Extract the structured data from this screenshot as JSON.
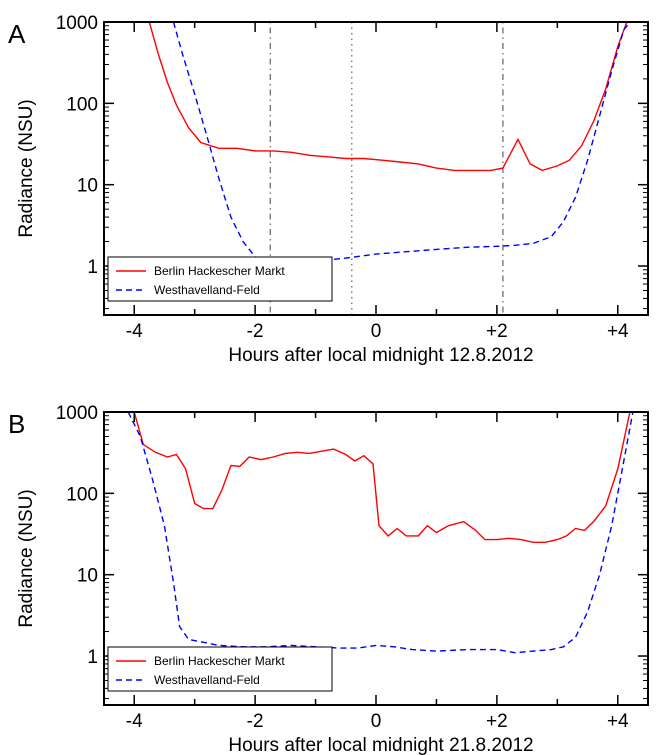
{
  "chart_data": [
    {
      "type": "line",
      "panel": "A",
      "xlabel": "Hours after local midnight 12.8.2012",
      "ylabel": "Radiance (NSU)",
      "xlim": [
        -4.5,
        4.5
      ],
      "ylim": [
        0.25,
        1000
      ],
      "yscale": "log",
      "x_ticks": [
        -4,
        -2,
        0,
        2,
        4
      ],
      "x_tick_labels": [
        "-4",
        "-2",
        "0",
        "+2",
        "+4"
      ],
      "y_ticks": [
        1,
        10,
        100,
        1000
      ],
      "y_tick_labels": [
        "1",
        "10",
        "100",
        "1000"
      ],
      "legend_position": "lower-left",
      "vlines": [
        {
          "x": -1.75,
          "style": "dashdot"
        },
        {
          "x": -0.4,
          "style": "dotted"
        },
        {
          "x": 2.1,
          "style": "dashdot"
        }
      ],
      "series": [
        {
          "name": "Berlin Hackescher Markt",
          "color": "#ff0000",
          "dash": "solid",
          "points": [
            [
              -3.75,
              1000
            ],
            [
              -3.6,
              400
            ],
            [
              -3.45,
              180
            ],
            [
              -3.3,
              95
            ],
            [
              -3.1,
              50
            ],
            [
              -2.9,
              33
            ],
            [
              -2.6,
              28
            ],
            [
              -2.3,
              28
            ],
            [
              -2.0,
              26
            ],
            [
              -1.7,
              26
            ],
            [
              -1.4,
              25
            ],
            [
              -1.1,
              23
            ],
            [
              -0.8,
              22
            ],
            [
              -0.5,
              21
            ],
            [
              -0.2,
              21
            ],
            [
              0.1,
              20
            ],
            [
              0.4,
              19
            ],
            [
              0.7,
              18
            ],
            [
              1.0,
              16
            ],
            [
              1.3,
              15
            ],
            [
              1.6,
              15
            ],
            [
              1.9,
              15
            ],
            [
              2.1,
              16
            ],
            [
              2.35,
              36
            ],
            [
              2.55,
              18
            ],
            [
              2.75,
              15
            ],
            [
              3.0,
              17
            ],
            [
              3.2,
              20
            ],
            [
              3.4,
              30
            ],
            [
              3.6,
              60
            ],
            [
              3.8,
              150
            ],
            [
              4.0,
              500
            ],
            [
              4.15,
              1000
            ]
          ]
        },
        {
          "name": "Westhavelland-Feld",
          "color": "#0000ff",
          "dash": "dashed",
          "points": [
            [
              -3.35,
              1000
            ],
            [
              -3.2,
              400
            ],
            [
              -3.0,
              130
            ],
            [
              -2.8,
              40
            ],
            [
              -2.6,
              12
            ],
            [
              -2.4,
              4
            ],
            [
              -2.2,
              2
            ],
            [
              -2.0,
              1.3
            ],
            [
              -1.8,
              1.15
            ],
            [
              -1.5,
              1.1
            ],
            [
              -1.0,
              1.15
            ],
            [
              -0.5,
              1.25
            ],
            [
              0.0,
              1.4
            ],
            [
              0.5,
              1.5
            ],
            [
              1.0,
              1.6
            ],
            [
              1.5,
              1.7
            ],
            [
              2.0,
              1.75
            ],
            [
              2.3,
              1.8
            ],
            [
              2.6,
              1.9
            ],
            [
              2.9,
              2.3
            ],
            [
              3.1,
              3.5
            ],
            [
              3.3,
              7
            ],
            [
              3.5,
              20
            ],
            [
              3.7,
              70
            ],
            [
              3.9,
              250
            ],
            [
              4.1,
              800
            ],
            [
              4.2,
              1000
            ]
          ]
        }
      ]
    },
    {
      "type": "line",
      "panel": "B",
      "xlabel": "Hours after local midnight 21.8.2012",
      "ylabel": "Radiance (NSU)",
      "xlim": [
        -4.5,
        4.5
      ],
      "ylim": [
        0.25,
        1000
      ],
      "yscale": "log",
      "x_ticks": [
        -4,
        -2,
        0,
        2,
        4
      ],
      "x_tick_labels": [
        "-4",
        "-2",
        "0",
        "+2",
        "+4"
      ],
      "y_ticks": [
        1,
        10,
        100,
        1000
      ],
      "y_tick_labels": [
        "1",
        "10",
        "100",
        "1000"
      ],
      "legend_position": "lower-left",
      "vlines": [],
      "series": [
        {
          "name": "Berlin Hackescher Markt",
          "color": "#ff0000",
          "dash": "solid",
          "points": [
            [
              -4.0,
              1000
            ],
            [
              -3.85,
              400
            ],
            [
              -3.65,
              320
            ],
            [
              -3.45,
              280
            ],
            [
              -3.3,
              300
            ],
            [
              -3.15,
              200
            ],
            [
              -3.0,
              75
            ],
            [
              -2.85,
              65
            ],
            [
              -2.7,
              65
            ],
            [
              -2.55,
              110
            ],
            [
              -2.4,
              220
            ],
            [
              -2.25,
              215
            ],
            [
              -2.1,
              280
            ],
            [
              -1.9,
              260
            ],
            [
              -1.7,
              280
            ],
            [
              -1.5,
              310
            ],
            [
              -1.3,
              320
            ],
            [
              -1.1,
              310
            ],
            [
              -0.9,
              330
            ],
            [
              -0.7,
              350
            ],
            [
              -0.5,
              300
            ],
            [
              -0.35,
              250
            ],
            [
              -0.2,
              290
            ],
            [
              -0.05,
              230
            ],
            [
              0.05,
              40
            ],
            [
              0.2,
              30
            ],
            [
              0.35,
              37
            ],
            [
              0.5,
              30
            ],
            [
              0.7,
              30
            ],
            [
              0.85,
              40
            ],
            [
              1.0,
              33
            ],
            [
              1.2,
              40
            ],
            [
              1.45,
              45
            ],
            [
              1.65,
              35
            ],
            [
              1.8,
              27
            ],
            [
              2.0,
              27
            ],
            [
              2.2,
              28
            ],
            [
              2.4,
              27
            ],
            [
              2.6,
              25
            ],
            [
              2.8,
              25
            ],
            [
              3.0,
              27
            ],
            [
              3.15,
              30
            ],
            [
              3.3,
              37
            ],
            [
              3.45,
              35
            ],
            [
              3.6,
              45
            ],
            [
              3.8,
              70
            ],
            [
              4.0,
              200
            ],
            [
              4.2,
              1000
            ]
          ]
        },
        {
          "name": "Westhavelland-Feld",
          "color": "#0000ff",
          "dash": "dashed",
          "points": [
            [
              -4.1,
              1000
            ],
            [
              -3.9,
              500
            ],
            [
              -3.7,
              150
            ],
            [
              -3.5,
              40
            ],
            [
              -3.35,
              8
            ],
            [
              -3.25,
              2.3
            ],
            [
              -3.1,
              1.6
            ],
            [
              -2.9,
              1.5
            ],
            [
              -2.6,
              1.35
            ],
            [
              -2.2,
              1.3
            ],
            [
              -1.8,
              1.3
            ],
            [
              -1.4,
              1.35
            ],
            [
              -1.0,
              1.3
            ],
            [
              -0.6,
              1.25
            ],
            [
              -0.3,
              1.25
            ],
            [
              0.0,
              1.35
            ],
            [
              0.3,
              1.3
            ],
            [
              0.6,
              1.2
            ],
            [
              1.0,
              1.15
            ],
            [
              1.5,
              1.2
            ],
            [
              2.0,
              1.2
            ],
            [
              2.3,
              1.1
            ],
            [
              2.6,
              1.15
            ],
            [
              2.9,
              1.2
            ],
            [
              3.1,
              1.3
            ],
            [
              3.3,
              1.7
            ],
            [
              3.5,
              3.5
            ],
            [
              3.7,
              10
            ],
            [
              3.9,
              40
            ],
            [
              4.1,
              250
            ],
            [
              4.25,
              1000
            ]
          ]
        }
      ]
    }
  ]
}
